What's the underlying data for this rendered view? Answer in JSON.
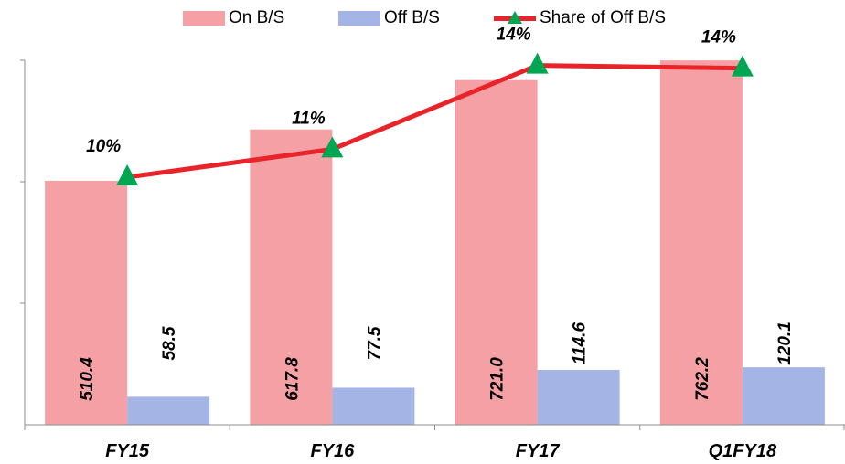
{
  "chart_data": {
    "type": "bar",
    "categories": [
      "FY15",
      "FY16",
      "FY17",
      "Q1FY18"
    ],
    "ylim": [
      0,
      900
    ],
    "series": [
      {
        "name": "On B/S",
        "type": "bar",
        "values": [
          510.4,
          617.8,
          721.0,
          762.2
        ],
        "labels": [
          "510.4",
          "617.8",
          "721.0",
          "762.2"
        ],
        "color": "#f4a0a4"
      },
      {
        "name": "Off B/S",
        "type": "bar",
        "values": [
          58.5,
          77.5,
          114.6,
          120.1
        ],
        "labels": [
          "58.5",
          "77.5",
          "114.6",
          "120.1"
        ],
        "color": "#a4b4e4"
      },
      {
        "name": "Share of Off B/S",
        "type": "line",
        "values": [
          10,
          11,
          14,
          14
        ],
        "labels": [
          "10%",
          "11%",
          "14%",
          "14%"
        ],
        "color": "#e8232a",
        "marker_color": "#00a651"
      }
    ],
    "legend_position": "top",
    "grid": false,
    "title": "",
    "xlabel": "",
    "ylabel": ""
  }
}
